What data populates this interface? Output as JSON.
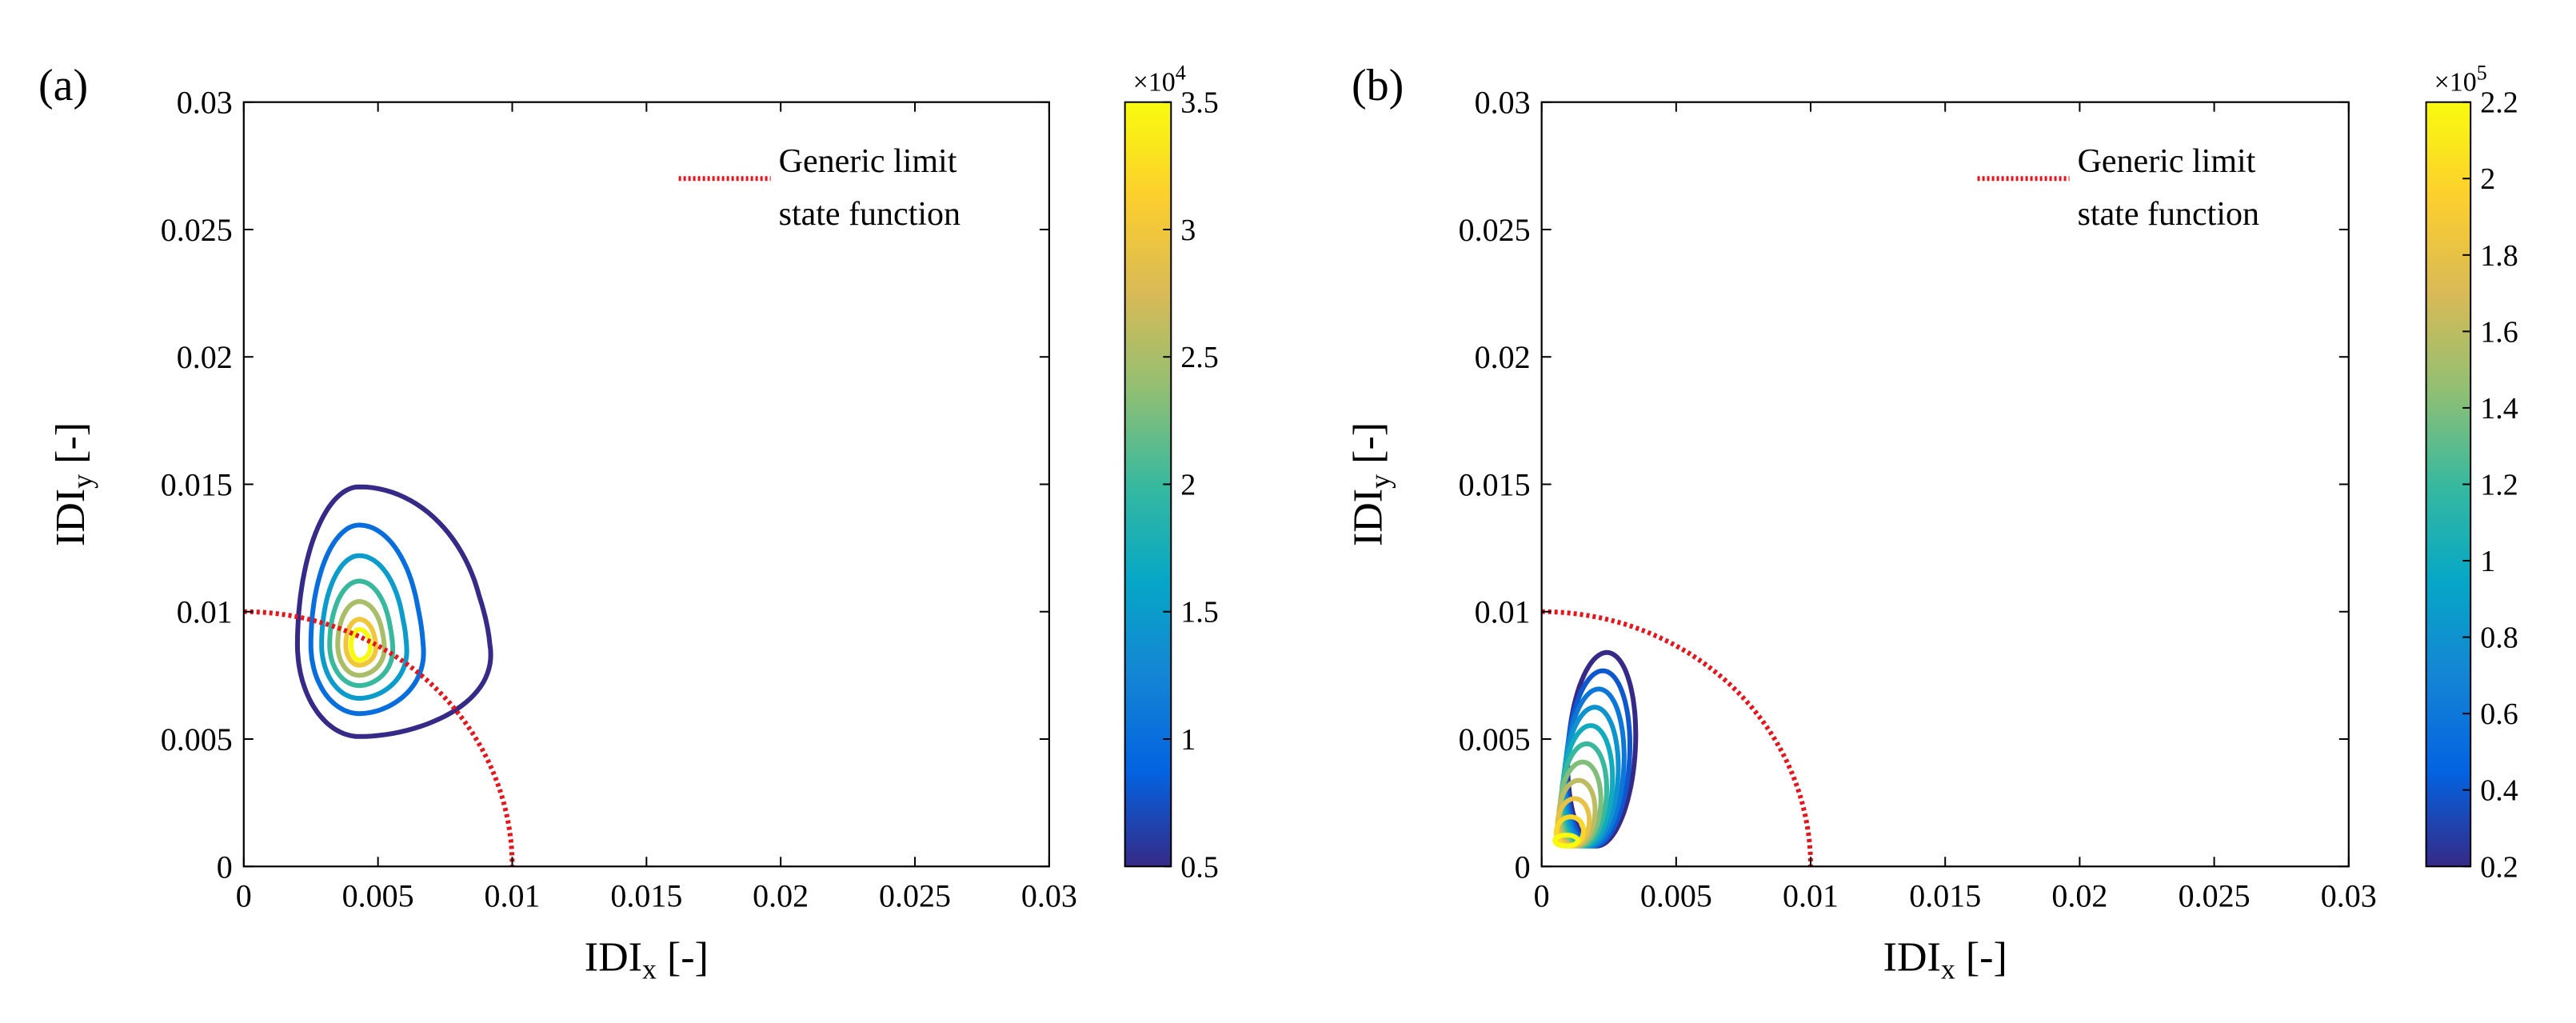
{
  "chart_data": [
    {
      "type": "contour",
      "panel_label": "(a)",
      "xlabel_main": "IDI",
      "xlabel_sub": "x",
      "xlabel_unit": " [-]",
      "ylabel_main": "IDI",
      "ylabel_sub": "y",
      "ylabel_unit": " [-]",
      "xlim": [
        0,
        0.03
      ],
      "ylim": [
        0,
        0.03
      ],
      "xticks": [
        0,
        0.005,
        0.01,
        0.015,
        0.02,
        0.025,
        0.03
      ],
      "xtick_labels": [
        "0",
        "0.005",
        "0.01",
        "0.015",
        "0.02",
        "0.025",
        "0.03"
      ],
      "yticks": [
        0,
        0.005,
        0.01,
        0.015,
        0.02,
        0.025,
        0.03
      ],
      "ytick_labels": [
        "0",
        "0.005",
        "0.01",
        "0.015",
        "0.02",
        "0.025",
        "0.03"
      ],
      "legend_line1": "Generic limit",
      "legend_line2": "state function",
      "limit_state": {
        "type": "quarter-circle",
        "radius": 0.01,
        "color": "#e8141c"
      },
      "colorbar": {
        "min": 0.5,
        "max": 3.5,
        "ticks": [
          0.5,
          1,
          1.5,
          2,
          2.5,
          3,
          3.5
        ],
        "tick_labels": [
          "0.5",
          "1",
          "1.5",
          "2",
          "2.5",
          "3",
          "3.5"
        ],
        "multiplier_base": "×10",
        "multiplier_exp": "4"
      },
      "contours": {
        "center": [
          0.0043,
          0.0087
        ],
        "levels": [
          0.5,
          1.0,
          1.5,
          2.0,
          2.5,
          3.0,
          3.5
        ],
        "right_extent_in": [
          0.009,
          0.0066,
          0.006,
          0.0055,
          0.0052,
          0.0049,
          0.0047
        ],
        "left_extent_in": [
          0.002,
          0.0025,
          0.0029,
          0.0032,
          0.0035,
          0.0038,
          0.004
        ],
        "top_extent_in": [
          0.0149,
          0.0134,
          0.0122,
          0.0112,
          0.0104,
          0.0097,
          0.0093
        ],
        "bottom_extent_in": [
          0.0051,
          0.006,
          0.0066,
          0.0071,
          0.0075,
          0.0079,
          0.0081
        ]
      }
    },
    {
      "type": "contour",
      "panel_label": "(b)",
      "xlabel_main": "IDI",
      "xlabel_sub": "x",
      "xlabel_unit": " [-]",
      "ylabel_main": "IDI",
      "ylabel_sub": "y",
      "ylabel_unit": " [-]",
      "xlim": [
        0,
        0.03
      ],
      "ylim": [
        0,
        0.03
      ],
      "xticks": [
        0,
        0.005,
        0.01,
        0.015,
        0.02,
        0.025,
        0.03
      ],
      "xtick_labels": [
        "0",
        "0.005",
        "0.01",
        "0.015",
        "0.02",
        "0.025",
        "0.03"
      ],
      "yticks": [
        0,
        0.005,
        0.01,
        0.015,
        0.02,
        0.025,
        0.03
      ],
      "ytick_labels": [
        "0",
        "0.005",
        "0.01",
        "0.015",
        "0.02",
        "0.025",
        "0.03"
      ],
      "legend_line1": "Generic limit",
      "legend_line2": "state function",
      "limit_state": {
        "type": "quarter-circle",
        "radius": 0.01,
        "color": "#e8141c"
      },
      "colorbar": {
        "min": 0.2,
        "max": 2.2,
        "ticks": [
          0.2,
          0.4,
          0.6,
          0.8,
          1,
          1.2,
          1.4,
          1.6,
          1.8,
          2,
          2.2
        ],
        "tick_labels": [
          "0.2",
          "0.4",
          "0.6",
          "0.8",
          "1",
          "1.2",
          "1.4",
          "1.6",
          "1.8",
          "2",
          "2.2"
        ],
        "multiplier_base": "×10",
        "multiplier_exp": "5"
      },
      "contours": {
        "center": [
          0.0011,
          0.0024
        ],
        "levels": [
          0.2,
          0.4,
          0.6,
          0.8,
          1.0,
          1.2,
          1.4,
          1.6,
          1.8,
          2.0,
          2.2
        ],
        "outer_top": 0.0084,
        "outer_bottom": 0.0006,
        "outer_left": 0.0002,
        "outer_right": 0.0027
      }
    }
  ],
  "colors": {
    "parula": [
      "#352a87",
      "#0363e1",
      "#1485d4",
      "#06a7c6",
      "#38b99e",
      "#92bf73",
      "#d9ba56",
      "#fcce2e",
      "#f9fb0e"
    ],
    "limit_state": "#e8141c"
  }
}
